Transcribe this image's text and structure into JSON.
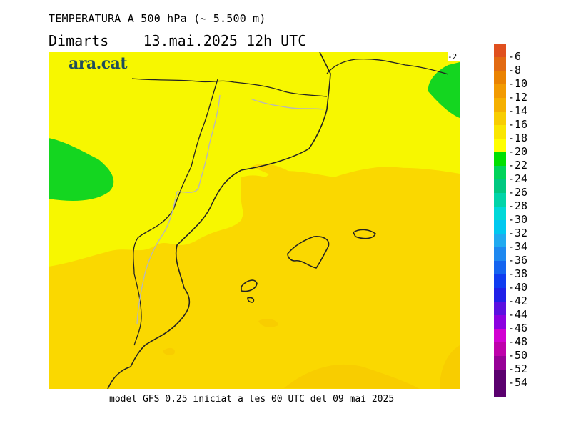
{
  "header": {
    "title": "TEMPERATURA A 500 hPa (~ 5.500 m)",
    "day": "Dimarts",
    "datetime": "13.mai.2025 12h UTC"
  },
  "map": {
    "logo": "ara.cat",
    "corner_label": "-2",
    "colors": {
      "sea_land_base": "#f7f700",
      "warm_band": "#fad800",
      "cold_band": "#14d620",
      "coast": "#222222",
      "border": "#b8b8b8"
    }
  },
  "legend": {
    "values": [
      "-6",
      "-8",
      "-10",
      "-12",
      "-14",
      "-16",
      "-18",
      "-20",
      "-22",
      "-24",
      "-26",
      "-28",
      "-30",
      "-32",
      "-34",
      "-36",
      "-38",
      "-40",
      "-42",
      "-44",
      "-46",
      "-48",
      "-50",
      "-52",
      "-54"
    ],
    "colors": [
      "#e0501e",
      "#e26a12",
      "#ea8200",
      "#f29a00",
      "#f5b000",
      "#f8cd00",
      "#fae600",
      "#ffff00",
      "#00e000",
      "#00d45a",
      "#00c880",
      "#00d4a8",
      "#00d8d8",
      "#00c8f0",
      "#20aaf0",
      "#1e88f0",
      "#1464f0",
      "#0f3cf0",
      "#2020e8",
      "#5a10e0",
      "#8c00e0",
      "#d200d2",
      "#be00aa",
      "#960096",
      "#5a006e"
    ]
  },
  "footer": {
    "text": "model GFS 0.25 iniciat a les 00 UTC del 09 mai 2025"
  }
}
